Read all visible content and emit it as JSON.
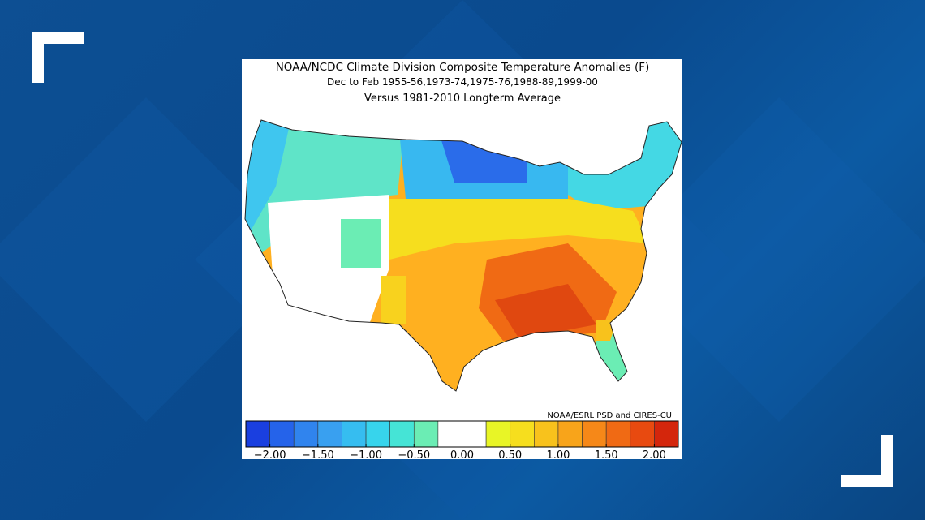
{
  "figure": {
    "title_lines": [
      "NOAA/NCDC Climate Division Composite Temperature Anomalies (F)",
      "Dec to Feb  1955-56,1973-74,1975-76,1988-89,1999-00",
      "Versus 1981-2010 Longterm Average"
    ],
    "credit": "NOAA/ESRL PSD and CIRES-CU",
    "legend": {
      "range": [
        -2.25,
        2.25
      ],
      "colors": [
        "#1a3fe0",
        "#2563ea",
        "#3084ee",
        "#39a0f0",
        "#36bdf0",
        "#37d4ec",
        "#45e4d6",
        "#6bedb4",
        "#ffffff",
        "#ffffff",
        "#e8f526",
        "#f6de1e",
        "#f8c21c",
        "#f8a41a",
        "#f68818",
        "#f06a14",
        "#e84a10",
        "#d4260c"
      ],
      "ticks": [
        {
          "value": -2,
          "label": "−2.00"
        },
        {
          "value": -1.5,
          "label": "−1.50"
        },
        {
          "value": -1,
          "label": "−1.00"
        },
        {
          "value": -0.5,
          "label": "−0.50"
        },
        {
          "value": 0,
          "label": "0.00"
        },
        {
          "value": 0.5,
          "label": "0.50"
        },
        {
          "value": 1,
          "label": "1.00"
        },
        {
          "value": 1.5,
          "label": "1.50"
        },
        {
          "value": 2,
          "label": "2.00"
        }
      ]
    }
  }
}
